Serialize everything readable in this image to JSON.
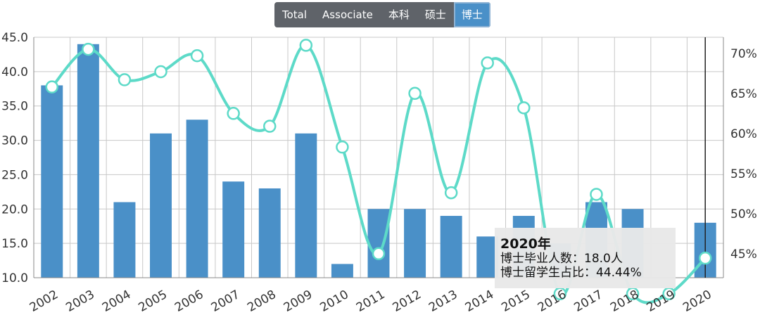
{
  "tabs": [
    {
      "label": "Total",
      "active": false
    },
    {
      "label": "Associate",
      "active": false
    },
    {
      "label": "本科",
      "active": false
    },
    {
      "label": "硕士",
      "active": false
    },
    {
      "label": "博士",
      "active": true
    }
  ],
  "colors": {
    "bar": "#4a90c8",
    "line": "#5ddac8",
    "tab_bg": "#5f6369",
    "tab_active": "#4a90c8"
  },
  "chart_data": {
    "type": "bar",
    "categories": [
      "2002",
      "2003",
      "2004",
      "2005",
      "2006",
      "2007",
      "2008",
      "2009",
      "2010",
      "2011",
      "2012",
      "2013",
      "2014",
      "2015",
      "2016",
      "2017",
      "2018",
      "2019",
      "2020"
    ],
    "series": [
      {
        "type": "bar",
        "axis": "left",
        "values": [
          38,
          44,
          21,
          31,
          33,
          24,
          23,
          31,
          12,
          20,
          20,
          19,
          16,
          19,
          15,
          21,
          20,
          10,
          18
        ]
      },
      {
        "type": "line",
        "axis": "right",
        "smooth": true,
        "values": [
          65.8,
          70.5,
          66.7,
          67.7,
          69.7,
          62.5,
          60.9,
          71.0,
          58.3,
          45.0,
          65.0,
          52.6,
          68.8,
          63.2,
          40.0,
          52.4,
          40.0,
          40.0,
          44.44
        ]
      }
    ],
    "y_left": {
      "min": 10,
      "max": 45,
      "ticks": [
        "10.0",
        "15.0",
        "20.0",
        "25.0",
        "30.0",
        "35.0",
        "40.0",
        "45.0"
      ]
    },
    "y_right": {
      "min": 42,
      "max": 72,
      "ticks": [
        "45%",
        "50%",
        "55%",
        "60%",
        "65%",
        "70%"
      ]
    },
    "grid": true,
    "tooltip": {
      "category": "2020",
      "title": "2020年",
      "line1": "博士毕业人数：18.0人",
      "line2": "博士留学生占比：44.44%"
    }
  }
}
